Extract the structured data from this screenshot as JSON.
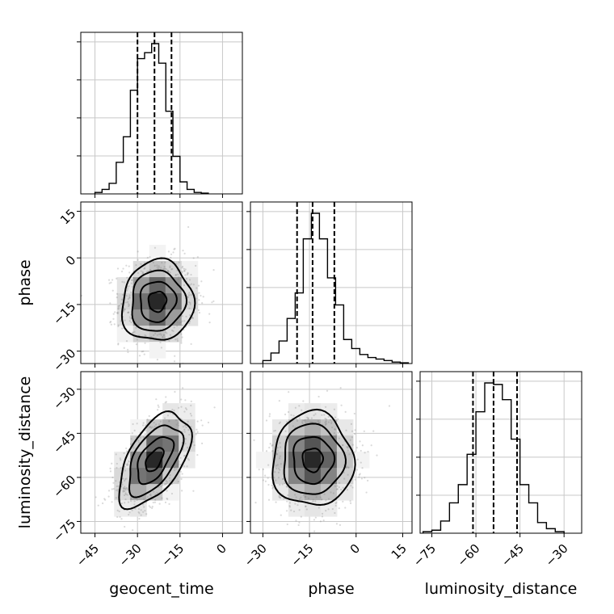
{
  "chart_data": {
    "type": "corner",
    "parameters": [
      "geocent_time",
      "phase",
      "luminosity_distance"
    ],
    "axis_labels": {
      "geocent_time": "geocent_time",
      "phase": "phase",
      "luminosity_distance": "luminosity_distance"
    },
    "ranges": {
      "geocent_time": [
        -50,
        7
      ],
      "phase": [
        -34,
        18
      ],
      "luminosity_distance": [
        -79,
        -24
      ]
    },
    "ticks": {
      "geocent_time": [
        -45,
        -30,
        -15,
        0
      ],
      "phase": [
        -30,
        -15,
        0,
        15
      ],
      "luminosity_distance": [
        -75,
        -60,
        -45,
        -30
      ]
    },
    "tick_labels": {
      "geocent_time": [
        "−45",
        "−30",
        "−15",
        "0"
      ],
      "phase": [
        "−30",
        "−15",
        "0",
        "15"
      ],
      "luminosity_distance": [
        "−75",
        "−60",
        "−45",
        "−30"
      ]
    },
    "quantiles": {
      "geocent_time": [
        -30,
        -24,
        -18
      ],
      "phase": [
        -19,
        -14,
        -7
      ],
      "luminosity_distance": [
        -61,
        -54,
        -46
      ]
    },
    "histograms": {
      "geocent_time": {
        "edges": [
          -45,
          -42.5,
          -40,
          -37.5,
          -35,
          -32.5,
          -30,
          -27.5,
          -25,
          -22.5,
          -20,
          -17.5,
          -15,
          -12.5,
          -10,
          -7.5,
          -5
        ],
        "counts": [
          0.01,
          0.03,
          0.07,
          0.21,
          0.38,
          0.69,
          0.9,
          0.94,
          1.0,
          0.87,
          0.55,
          0.25,
          0.08,
          0.03,
          0.01,
          0.005
        ]
      },
      "phase": {
        "edges": [
          -30,
          -27.4,
          -24.8,
          -22.2,
          -19.6,
          -17,
          -14.4,
          -11.8,
          -9.2,
          -6.6,
          -4,
          -1.4,
          1.2,
          3.8,
          6.4,
          9,
          11.6,
          14.2,
          16.8
        ],
        "counts": [
          0.02,
          0.07,
          0.15,
          0.3,
          0.47,
          0.83,
          1.0,
          0.83,
          0.57,
          0.39,
          0.16,
          0.1,
          0.06,
          0.04,
          0.03,
          0.02,
          0.01,
          0.005
        ]
      },
      "luminosity_distance": {
        "edges": [
          -78,
          -75,
          -72,
          -69,
          -66,
          -63,
          -60,
          -57,
          -54,
          -51,
          -48,
          -45,
          -42,
          -39,
          -36,
          -33,
          -30
        ],
        "counts": [
          0.01,
          0.02,
          0.08,
          0.2,
          0.32,
          0.52,
          0.8,
          0.99,
          0.98,
          0.88,
          0.62,
          0.32,
          0.2,
          0.07,
          0.03,
          0.01
        ]
      }
    },
    "posteriors_2d": [
      {
        "x": "geocent_time",
        "y": "phase",
        "mean": [
          -23,
          -14
        ],
        "sd": [
          6.3,
          6.5
        ],
        "corr": 0.05
      },
      {
        "x": "geocent_time",
        "y": "luminosity_distance",
        "mean": [
          -24,
          -54
        ],
        "sd": [
          6.3,
          8.0
        ],
        "corr": 0.55
      },
      {
        "x": "phase",
        "y": "luminosity_distance",
        "mean": [
          -14,
          -54
        ],
        "sd": [
          6.5,
          8.0
        ],
        "corr": 0.0
      }
    ],
    "grid": true
  }
}
